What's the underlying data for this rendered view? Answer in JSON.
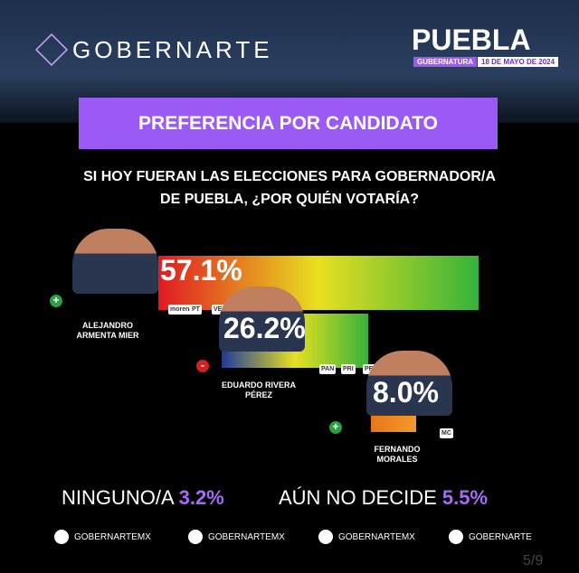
{
  "header": {
    "brand": "GOBERNARTE",
    "state": "PUEBLA",
    "tag": "GUBERNATURA",
    "date": "18 DE MAYO DE 2024"
  },
  "banner": "PREFERENCIA POR CANDIDATO",
  "question": [
    "SI HOY FUERAN LAS ELECCIONES PARA GOBERNADOR/A",
    "DE PUEBLA, ¿POR QUIÉN VOTARÍA?"
  ],
  "chart_data": {
    "type": "bar",
    "categories": [
      "ALEJANDRO ARMENTA MIER",
      "EDUARDO RIVERA PÉREZ",
      "FERNANDO MORALES"
    ],
    "values": [
      57.1,
      26.2,
      8.0
    ],
    "value_labels": [
      "57.1%",
      "26.2%",
      "8.0%"
    ],
    "colors": [
      [
        "#e01a22",
        "#e8e020",
        "#35b23a"
      ],
      [
        "#1e3a9c",
        "#e8e020",
        "#35b23a"
      ],
      [
        "#e8761a",
        "#f39a2a"
      ]
    ],
    "signs": [
      "+",
      "-",
      "+"
    ],
    "parties": [
      [
        "morena",
        "PT",
        "VERDE"
      ],
      [
        "PAN",
        "PRI",
        "PRD"
      ],
      [
        "MC"
      ]
    ]
  },
  "others": [
    {
      "label": "NINGUNO/A",
      "value": "3.2%"
    },
    {
      "label": "AÚN NO DECIDE",
      "value": "5.5%"
    }
  ],
  "socials": [
    "GOBERNARTEMX",
    "GOBERNARTEMX",
    "GOBERNARTEMX",
    "GOBERNARTE"
  ],
  "page": "5/9"
}
